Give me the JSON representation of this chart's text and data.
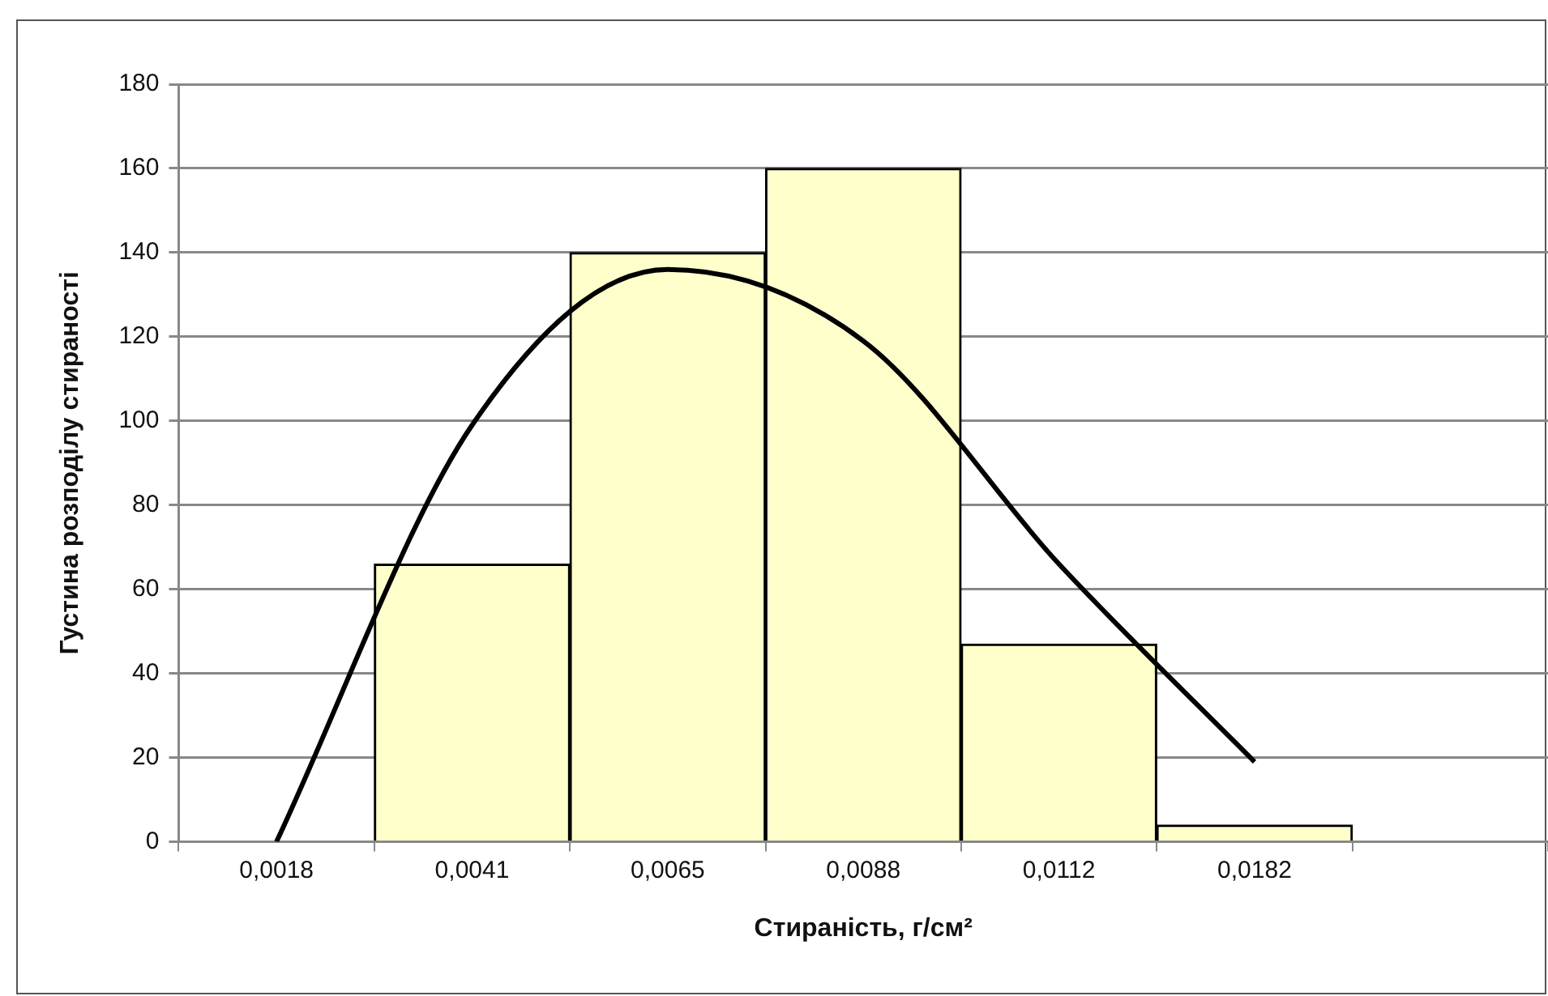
{
  "chart_data": {
    "type": "bar",
    "xlabel": "Стираність, г/см²",
    "ylabel": "Густина розподілу стираності",
    "categories": [
      "0,0018",
      "0,0041",
      "0,0065",
      "0,0088",
      "0,0112",
      "0,0182",
      null
    ],
    "series": [
      {
        "color": "#ffffcc",
        "values": [
          null,
          66,
          140,
          160,
          47,
          4,
          null
        ]
      },
      {
        "type": "line",
        "color": "#000000",
        "values": [
          0,
          99,
          136,
          119,
          66,
          19,
          null
        ]
      }
    ],
    "ylim": [
      0,
      180
    ],
    "yticks": [
      0,
      20,
      40,
      60,
      80,
      100,
      120,
      140,
      160,
      180
    ],
    "grid": "y",
    "marker": "none",
    "line_style": "solid"
  }
}
